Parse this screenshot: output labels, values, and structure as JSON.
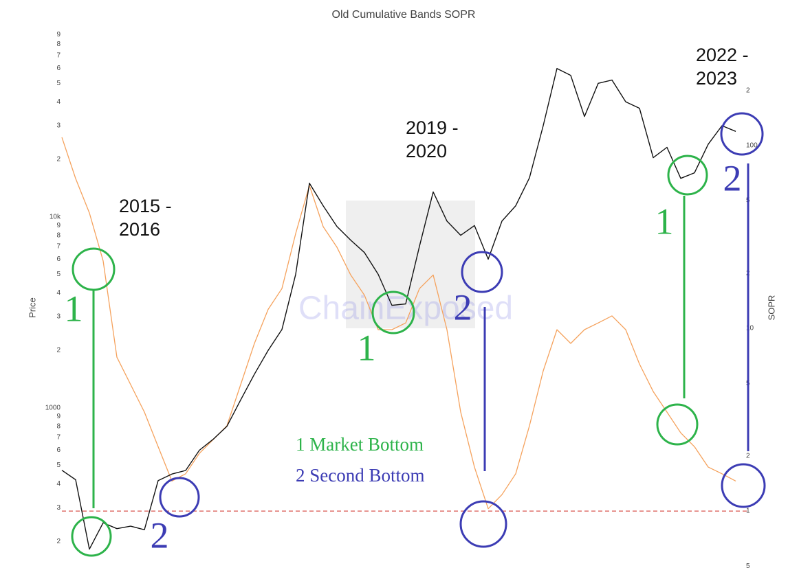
{
  "chart_data": {
    "type": "line",
    "title": "Old Cumulative Bands SOPR",
    "ylabel": "Price",
    "y2label": "SOPR",
    "log_y": true,
    "log_y2": true,
    "grid": false,
    "ylim": [
      145,
      98000
    ],
    "y2lim": [
      0.488,
      443
    ],
    "yticks": [
      {
        "value": 200,
        "label": "2"
      },
      {
        "value": 300,
        "label": "3"
      },
      {
        "value": 400,
        "label": "4"
      },
      {
        "value": 500,
        "label": "5"
      },
      {
        "value": 600,
        "label": "6"
      },
      {
        "value": 700,
        "label": "7"
      },
      {
        "value": 800,
        "label": "8"
      },
      {
        "value": 900,
        "label": "9"
      },
      1000,
      {
        "value": 2000,
        "label": "2"
      },
      {
        "value": 3000,
        "label": "3"
      },
      {
        "value": 4000,
        "label": "4"
      },
      {
        "value": 5000,
        "label": "5"
      },
      {
        "value": 6000,
        "label": "6"
      },
      {
        "value": 7000,
        "label": "7"
      },
      {
        "value": 8000,
        "label": "8"
      },
      {
        "value": 9000,
        "label": "9"
      },
      {
        "value": 10000,
        "label": "10k"
      },
      {
        "value": 20000,
        "label": "2"
      },
      {
        "value": 30000,
        "label": "3"
      },
      {
        "value": 40000,
        "label": "4"
      },
      {
        "value": 50000,
        "label": "5"
      },
      {
        "value": 60000,
        "label": "6"
      },
      {
        "value": 70000,
        "label": "7"
      },
      {
        "value": 80000,
        "label": "8"
      },
      {
        "value": 90000,
        "label": "9"
      }
    ],
    "y2ticks": [
      {
        "value": 0.5,
        "label": "5"
      },
      1,
      2,
      5,
      10,
      {
        "value": 20,
        "label": "2"
      },
      {
        "value": 50,
        "label": "5"
      },
      100,
      {
        "value": 200,
        "label": "2"
      }
    ],
    "series": [
      {
        "name": "SOPR",
        "color": "#f5a25d",
        "axis": "y2",
        "values": [
          111,
          66,
          42.8,
          23.4,
          6.95,
          4.92,
          3.48,
          2.25,
          1.46,
          1.6,
          2.07,
          2.46,
          2.93,
          4.92,
          8.27,
          12.7,
          16.5,
          33.0,
          60.5,
          36.0,
          27.8,
          19.6,
          15.2,
          9.83,
          9.83,
          10.7,
          16.5,
          19.6,
          9.83,
          3.48,
          1.74,
          1.03,
          1.23,
          1.6,
          2.93,
          5.85,
          9.83,
          8.27,
          9.83,
          10.7,
          11.7,
          9.83,
          6.38,
          4.51,
          3.48,
          2.68,
          2.25,
          1.74,
          1.6,
          1.46
        ]
      },
      {
        "name": "Price",
        "color": "#111111",
        "values": [
          471,
          420,
          182,
          250,
          233,
          240,
          230,
          416,
          450,
          470,
          600,
          684,
          800,
          1100,
          1500,
          2000,
          2570,
          5000,
          15000,
          11420,
          8900,
          7550,
          6500,
          5000,
          3440,
          3500,
          7000,
          13500,
          9500,
          8000,
          9000,
          6000,
          9500,
          11420,
          16000,
          30000,
          59800,
          55000,
          33500,
          50000,
          52000,
          40000,
          37000,
          20400,
          23100,
          15900,
          17000,
          24000,
          30000,
          28000
        ]
      }
    ],
    "hline": {
      "value": 1,
      "axis": "y2",
      "color": "#d9534f"
    },
    "periods": [
      [
        "2015 -",
        "2016"
      ],
      [
        "2019 -",
        "2020"
      ],
      [
        "2022 -",
        "2023"
      ]
    ],
    "markers": [
      "1",
      "2",
      "1",
      "2",
      "1",
      "2"
    ],
    "legend": [
      "1 Market Bottom",
      "2 Second Bottom"
    ],
    "watermark": "ChainExposed"
  }
}
